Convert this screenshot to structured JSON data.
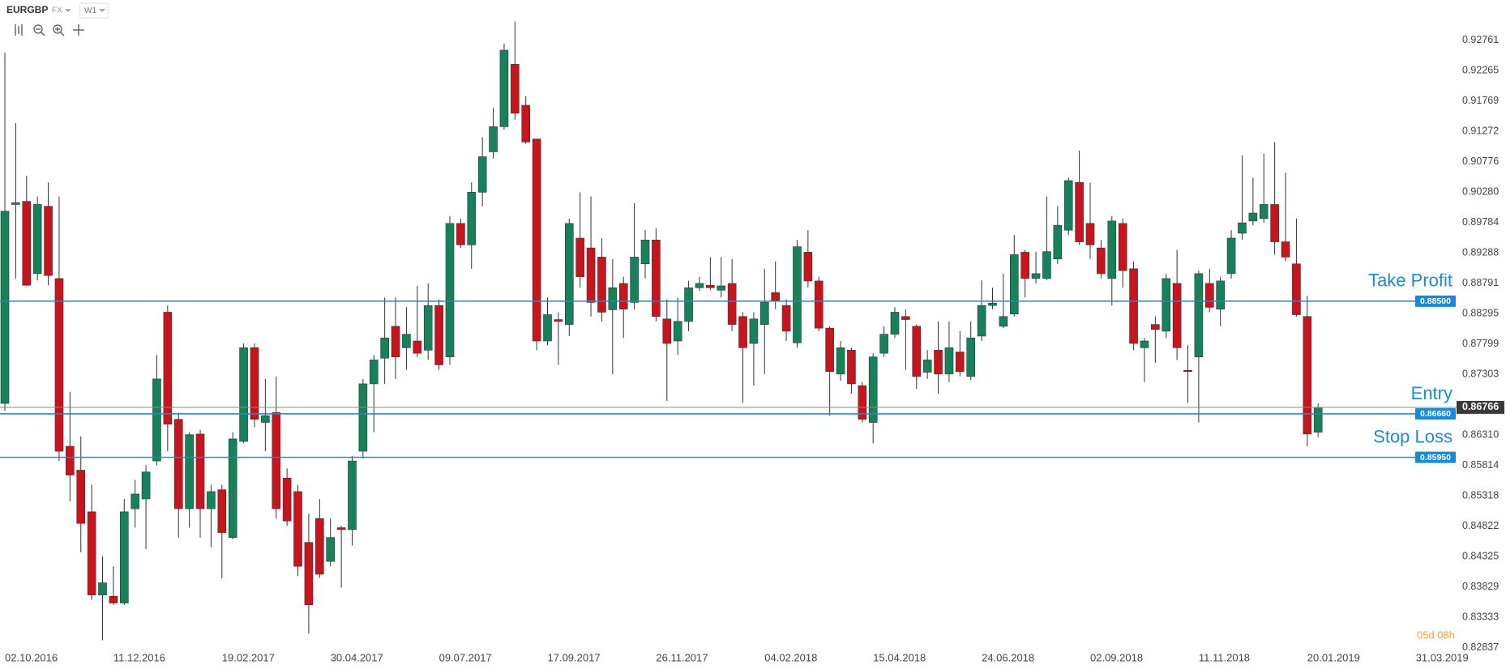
{
  "chart_data": {
    "type": "candlestick",
    "symbol": "EURGBP",
    "market": "FX",
    "interval": "W1",
    "countdown": "05d 08h",
    "up_color": "#16825a",
    "down_color": "#c8151d",
    "wick_color": "#333333",
    "grid": false,
    "categories": [
      "02.10.2016",
      null,
      null,
      null,
      null,
      null,
      null,
      null,
      null,
      null,
      "11.12.2016",
      null,
      null,
      null,
      null,
      null,
      null,
      null,
      null,
      null,
      "19.02.2017",
      null,
      null,
      null,
      null,
      null,
      null,
      null,
      null,
      null,
      "30.04.2017",
      null,
      null,
      null,
      null,
      null,
      null,
      null,
      null,
      null,
      "09.07.2017",
      null,
      null,
      null,
      null,
      null,
      null,
      null,
      null,
      null,
      "17.09.2017",
      null,
      null,
      null,
      null,
      null,
      null,
      null,
      null,
      null,
      "26.11.2017",
      null,
      null,
      null,
      null,
      null,
      null,
      null,
      null,
      null,
      "04.02.2018",
      null,
      null,
      null,
      null,
      null,
      null,
      null,
      null,
      null,
      "15.04.2018",
      null,
      null,
      null,
      null,
      null,
      null,
      null,
      null,
      null,
      "24.06.2018",
      null,
      null,
      null,
      null,
      null,
      null,
      null,
      null,
      null,
      "02.09.2018",
      null,
      null,
      null,
      null,
      null,
      null,
      null,
      null,
      null,
      "11.11.2018",
      null,
      null,
      null,
      null,
      null,
      null,
      null,
      null,
      null,
      "20.01.2019",
      null,
      null,
      null,
      null,
      null,
      null,
      null,
      null,
      null,
      "31.03.2019"
    ],
    "open": [
      0.8683,
      0.9008,
      0.9013,
      0.8895,
      0.9005,
      0.8887,
      0.8613,
      0.8574,
      0.8506,
      0.837,
      0.8368,
      0.8357,
      0.8511,
      0.8527,
      0.8589,
      0.8832,
      0.8657,
      0.8511,
      0.8633,
      0.8511,
      0.8542,
      0.8464,
      0.8621,
      0.8774,
      0.8652,
      0.8668,
      0.8561,
      0.8539,
      0.8456,
      0.8495,
      0.8425,
      0.848,
      0.8477,
      0.8605,
      0.8715,
      0.8757,
      0.8809,
      0.8774,
      0.8785,
      0.877,
      0.8843,
      0.8759,
      0.8977,
      0.8942,
      0.9028,
      0.9094,
      0.9135,
      0.9237,
      0.917,
      0.9115,
      0.8785,
      0.882,
      0.8812,
      0.8953,
      0.8937,
      0.8922,
      0.8836,
      0.8879,
      0.8848,
      0.8911,
      0.895,
      0.8821,
      0.8785,
      0.8817,
      0.8872,
      0.8876,
      0.8868,
      0.8879,
      0.8825,
      0.8781,
      0.8812,
      0.8864,
      0.8843,
      0.8782,
      0.893,
      0.8883,
      0.8806,
      0.8731,
      0.877,
      0.8712,
      0.8652,
      0.8765,
      0.8796,
      0.8825,
      0.8809,
      0.8734,
      0.877,
      0.8731,
      0.8767,
      0.8727,
      0.8793,
      0.8843,
      0.8809,
      0.8829,
      0.893,
      0.8887,
      0.8887,
      0.8919,
      0.8966,
      0.9044,
      0.8977,
      0.8937,
      0.8887,
      0.8977,
      0.8903,
      0.8774,
      0.8812,
      0.8801,
      0.8879,
      0.8737,
      0.8759,
      0.8879,
      0.8837,
      0.8895,
      0.8961,
      0.8981,
      0.8985,
      0.9008,
      0.8947,
      0.8911,
      0.8825,
      0.8636,
      null,
      null,
      null,
      null,
      null,
      null,
      null,
      null,
      null
    ],
    "high": [
      0.9256,
      0.9141,
      0.9055,
      0.9021,
      0.9044,
      0.9021,
      0.8702,
      0.8629,
      0.855,
      0.8433,
      0.8417,
      0.8527,
      0.8558,
      0.8582,
      0.8762,
      0.8843,
      0.8668,
      0.8636,
      0.864,
      0.855,
      0.855,
      0.8636,
      0.8781,
      0.8781,
      0.8723,
      0.8727,
      0.8577,
      0.855,
      0.8503,
      0.8527,
      0.8495,
      0.8483,
      0.8597,
      0.8723,
      0.8762,
      0.8856,
      0.8856,
      0.884,
      0.8875,
      0.8879,
      0.8853,
      0.8989,
      0.8985,
      0.9044,
      0.9118,
      0.9166,
      0.9271,
      0.9307,
      0.9185,
      0.9115,
      0.8856,
      0.8832,
      0.8985,
      0.9028,
      0.9021,
      0.8953,
      0.8919,
      0.889,
      0.901,
      0.8966,
      0.8969,
      0.8853,
      0.8856,
      0.8883,
      0.889,
      0.8922,
      0.8922,
      0.8919,
      0.8832,
      0.8832,
      0.8903,
      0.8915,
      0.8853,
      0.895,
      0.8966,
      0.889,
      0.8809,
      0.8785,
      0.8774,
      0.8718,
      0.8765,
      0.8809,
      0.884,
      0.8837,
      0.8812,
      0.877,
      0.8817,
      0.8817,
      0.8801,
      0.8817,
      0.8884,
      0.8872,
      0.8895,
      0.8958,
      0.8934,
      0.8931,
      0.9021,
      0.9005,
      0.9052,
      0.9096,
      0.9044,
      0.895,
      0.8989,
      0.8985,
      0.8915,
      0.879,
      0.8825,
      0.8895,
      0.8934,
      0.8778,
      0.89,
      0.8903,
      0.889,
      0.8966,
      0.9088,
      0.9052,
      0.9091,
      0.911,
      0.906,
      0.8985,
      0.8859,
      0.8683,
      null,
      null,
      null,
      null,
      null,
      null,
      null,
      null,
      null
    ],
    "low": [
      0.8671,
      0.8887,
      0.8876,
      0.8884,
      0.8876,
      0.8589,
      0.8523,
      0.844,
      0.8362,
      0.8296,
      0.8354,
      0.8354,
      0.848,
      0.8445,
      0.8582,
      0.8605,
      0.8464,
      0.848,
      0.8464,
      0.8448,
      0.8397,
      0.8461,
      0.8618,
      0.8644,
      0.8605,
      0.8495,
      0.8483,
      0.8401,
      0.8307,
      0.8398,
      0.8417,
      0.8382,
      0.8451,
      0.8593,
      0.8636,
      0.8715,
      0.8723,
      0.8738,
      0.8759,
      0.8754,
      0.8738,
      0.8746,
      0.8937,
      0.8903,
      0.9005,
      0.9083,
      0.913,
      0.9146,
      0.9107,
      0.877,
      0.8778,
      0.8746,
      0.8793,
      0.8872,
      0.8825,
      0.8817,
      0.8731,
      0.879,
      0.8837,
      0.8887,
      0.8817,
      0.8687,
      0.8762,
      0.8801,
      0.8867,
      0.8868,
      0.8856,
      0.8801,
      0.8684,
      0.8712,
      0.8731,
      0.8837,
      0.8785,
      0.8774,
      0.8872,
      0.8801,
      0.8663,
      0.872,
      0.8699,
      0.8652,
      0.8618,
      0.8759,
      0.879,
      0.8738,
      0.8707,
      0.8723,
      0.8699,
      0.8718,
      0.8727,
      0.8721,
      0.8785,
      0.8837,
      0.8806,
      0.8825,
      0.8856,
      0.8879,
      0.8884,
      0.8911,
      0.8958,
      0.8942,
      0.8919,
      0.8887,
      0.8843,
      0.8872,
      0.877,
      0.8718,
      0.8749,
      0.879,
      0.8754,
      0.8684,
      0.8652,
      0.8832,
      0.8809,
      0.8887,
      0.895,
      0.8974,
      0.8978,
      0.8926,
      0.8915,
      0.8825,
      0.8613,
      0.8628,
      null,
      null,
      null,
      null,
      null,
      null,
      null,
      null,
      null
    ],
    "close": [
      0.8997,
      0.9011,
      0.8876,
      0.9008,
      0.8892,
      0.8605,
      0.8566,
      0.8487,
      0.837,
      0.839,
      0.8357,
      0.8506,
      0.8535,
      0.8571,
      0.8723,
      0.8649,
      0.8511,
      0.8632,
      0.8511,
      0.8539,
      0.8472,
      0.8625,
      0.8774,
      0.8657,
      0.8663,
      0.8511,
      0.8491,
      0.8417,
      0.8354,
      0.8404,
      0.8464,
      0.8477,
      0.8589,
      0.8715,
      0.8754,
      0.879,
      0.8759,
      0.8796,
      0.8765,
      0.8843,
      0.8746,
      0.8977,
      0.8942,
      0.9028,
      0.9086,
      0.9135,
      0.926,
      0.9157,
      0.911,
      0.8785,
      0.8828,
      0.8817,
      0.8977,
      0.889,
      0.8848,
      0.8832,
      0.8872,
      0.8837,
      0.8922,
      0.895,
      0.8825,
      0.8781,
      0.8817,
      0.8872,
      0.8879,
      0.8872,
      0.8875,
      0.8812,
      0.8774,
      0.8821,
      0.8848,
      0.8851,
      0.8801,
      0.8939,
      0.8883,
      0.8806,
      0.8735,
      0.8774,
      0.8715,
      0.8657,
      0.8759,
      0.8796,
      0.8832,
      0.882,
      0.8727,
      0.8754,
      0.8731,
      0.8774,
      0.8735,
      0.879,
      0.8843,
      0.8847,
      0.8825,
      0.8926,
      0.8887,
      0.8895,
      0.8931,
      0.8974,
      0.9047,
      0.8947,
      0.8942,
      0.8895,
      0.8981,
      0.89,
      0.8781,
      0.8785,
      0.8804,
      0.8887,
      0.8774,
      0.8735,
      0.8895,
      0.884,
      0.8883,
      0.8953,
      0.8978,
      0.8994,
      0.9008,
      0.8947,
      0.8922,
      0.8828,
      0.8633,
      0.86766,
      null,
      null,
      null,
      null,
      null,
      null,
      null,
      null,
      null
    ],
    "ylim": [
      0.8273,
      0.9342
    ],
    "yticks": [
      0.92761,
      0.92265,
      0.91769,
      0.91272,
      0.90776,
      {
        "value": 0.9028,
        "label": "0.90280"
      },
      0.89784,
      0.89288,
      0.88791,
      0.88295,
      0.87799,
      0.87303,
      {
        "value": 0.8631,
        "label": "0.86310"
      },
      0.85814,
      0.85318,
      0.84822,
      0.84325,
      0.83829,
      0.83333,
      0.82837
    ],
    "levels": [
      {
        "name": "Take Profit",
        "value": 0.885,
        "value_label": "0.88500",
        "color": "#1b8ad0"
      },
      {
        "name": "Entry",
        "value": 0.8666,
        "value_label": "0.86660",
        "color": "#1b8ad0"
      },
      {
        "name": "Stop Loss",
        "value": 0.8595,
        "value_label": "0.85950",
        "color": "#1b8ad0"
      }
    ]
  }
}
